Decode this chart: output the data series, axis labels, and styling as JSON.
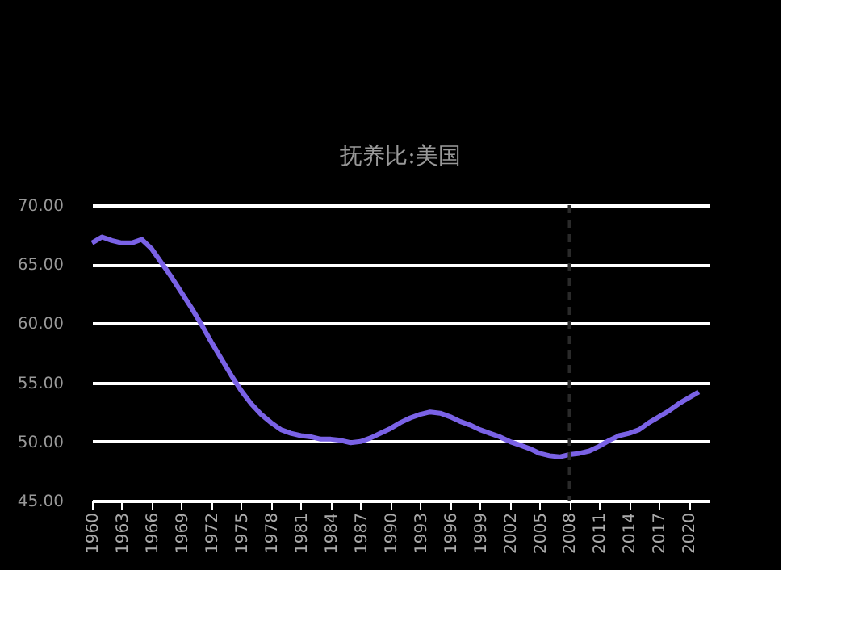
{
  "chart_data": {
    "type": "line",
    "title": "抚养比:美国",
    "x": [
      1960,
      1961,
      1962,
      1963,
      1964,
      1965,
      1966,
      1967,
      1968,
      1969,
      1970,
      1971,
      1972,
      1973,
      1974,
      1975,
      1976,
      1977,
      1978,
      1979,
      1980,
      1981,
      1982,
      1983,
      1984,
      1985,
      1986,
      1987,
      1988,
      1989,
      1990,
      1991,
      1992,
      1993,
      1994,
      1995,
      1996,
      1997,
      1998,
      1999,
      2000,
      2001,
      2002,
      2003,
      2004,
      2005,
      2006,
      2007,
      2008,
      2009,
      2010,
      2011,
      2012,
      2013,
      2014,
      2015,
      2016,
      2017,
      2018,
      2019,
      2020,
      2021
    ],
    "series": [
      {
        "color": "#7a62e6",
        "values": [
          66.8,
          67.3,
          67.0,
          66.8,
          66.8,
          67.1,
          66.3,
          65.1,
          63.9,
          62.6,
          61.3,
          59.9,
          58.4,
          57.0,
          55.6,
          54.3,
          53.2,
          52.3,
          51.6,
          51.0,
          50.7,
          50.5,
          50.4,
          50.2,
          50.2,
          50.1,
          49.9,
          50.0,
          50.3,
          50.7,
          51.1,
          51.6,
          52.0,
          52.3,
          52.5,
          52.4,
          52.1,
          51.7,
          51.4,
          51.0,
          50.7,
          50.4,
          50.0,
          49.7,
          49.4,
          49.0,
          48.8,
          48.7,
          48.9,
          49.0,
          49.2,
          49.6,
          50.1,
          50.5,
          50.7,
          51.0,
          51.6,
          52.1,
          52.6,
          53.2,
          53.7,
          54.2
        ]
      }
    ],
    "xlim": [
      1960,
      2022
    ],
    "xticks": [
      1960,
      1963,
      1966,
      1969,
      1972,
      1975,
      1978,
      1981,
      1984,
      1987,
      1990,
      1993,
      1996,
      1999,
      2002,
      2005,
      2008,
      2011,
      2014,
      2017,
      2020
    ],
    "ylim": [
      45,
      70
    ],
    "yticks": [
      {
        "value": 45,
        "label": "45.00"
      },
      {
        "value": 50,
        "label": "50.00"
      },
      {
        "value": 55,
        "label": "55.00"
      },
      {
        "value": 60,
        "label": "60.00"
      },
      {
        "value": 65,
        "label": "65.00"
      },
      {
        "value": 70,
        "label": "70.00"
      }
    ],
    "grid": "y",
    "marker": "none",
    "line_style": "solid",
    "ref_lines": [
      {
        "axis": "x",
        "value": 2008,
        "color": "#2a2a2a",
        "line_style": "dashed"
      }
    ]
  }
}
